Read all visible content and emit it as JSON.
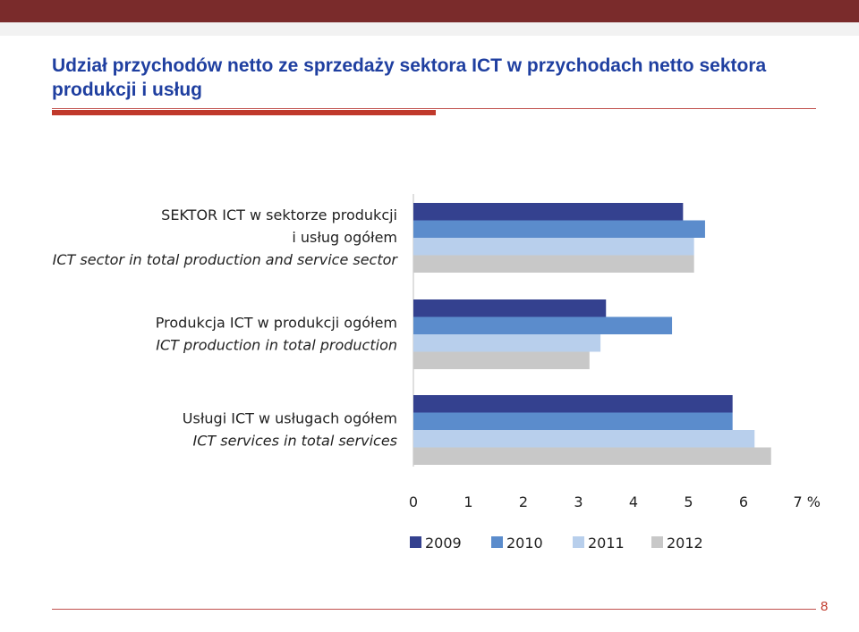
{
  "header": {
    "title": "Udział przychodów netto ze sprzedaży sektora ICT w przychodach netto sektora produkcji i usług"
  },
  "colors": {
    "header_bar": "#7a2b2b",
    "accent": "#c0392b",
    "title": "#1f3fa0"
  },
  "chart_data": {
    "type": "bar",
    "orientation": "horizontal",
    "categories": [
      {
        "lines": [
          "SEKTOR ICT w sektorze produkcji ",
          "i usług ogółem"
        ],
        "italic": "ICT sector in total production and service sector"
      },
      {
        "lines": [
          "Produkcja ICT w produkcji ogółem"
        ],
        "italic": "ICT production in total production"
      },
      {
        "lines": [
          "Usługi ICT w usługach ogółem"
        ],
        "italic": "ICT services in total services"
      }
    ],
    "series": [
      {
        "name": "2009",
        "color": "#34418f",
        "values": [
          4.9,
          3.5,
          5.8
        ]
      },
      {
        "name": "2010",
        "color": "#5b8ccc",
        "values": [
          5.3,
          4.7,
          5.8
        ]
      },
      {
        "name": "2011",
        "color": "#b8cfec",
        "values": [
          5.1,
          3.4,
          6.2
        ]
      },
      {
        "name": "2012",
        "color": "#c8c8c8",
        "values": [
          5.1,
          3.2,
          6.5
        ]
      }
    ],
    "xlim": [
      0,
      7
    ],
    "ticks": [
      "0",
      "1",
      "2",
      "3",
      "4",
      "5",
      "6",
      "7 %"
    ],
    "legend_position": "bottom"
  },
  "footer": {
    "page_number": "8"
  }
}
